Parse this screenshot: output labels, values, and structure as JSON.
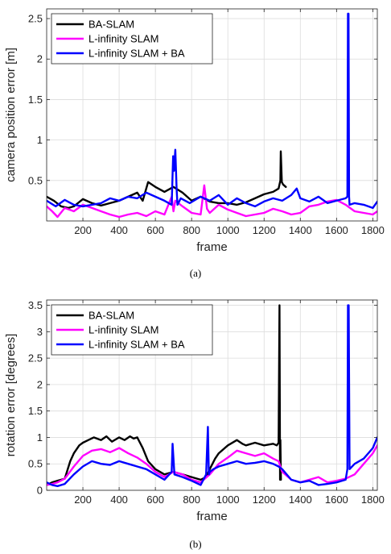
{
  "chart_data": [
    {
      "type": "line",
      "xlabel": "frame",
      "ylabel": "camera position error [m]",
      "xlim": [
        0,
        1825
      ],
      "ylim": [
        0,
        2.62
      ],
      "xticks": [
        200,
        400,
        600,
        800,
        1000,
        1200,
        1400,
        1600,
        1800
      ],
      "xtick_labels": [
        "200",
        "400",
        "600",
        "800",
        "1000",
        "1200",
        "1400",
        "1600",
        "1800"
      ],
      "yticks": [
        0.5,
        1,
        1.5,
        2,
        2.5
      ],
      "ytick_labels": [
        "0.5",
        "1",
        "1.5",
        "2",
        "2.5"
      ],
      "grid": true,
      "legend_position": "top-left",
      "caption": "(a)",
      "series": [
        {
          "name": "BA-SLAM",
          "color": "#000000",
          "x": [
            0,
            40,
            80,
            120,
            150,
            200,
            250,
            300,
            350,
            400,
            450,
            500,
            530,
            560,
            600,
            650,
            700,
            750,
            800,
            850,
            900,
            950,
            1000,
            1050,
            1100,
            1150,
            1200,
            1250,
            1280,
            1290,
            1292,
            1298,
            1305,
            1320
          ],
          "y": [
            0.3,
            0.25,
            0.18,
            0.16,
            0.18,
            0.27,
            0.22,
            0.19,
            0.22,
            0.25,
            0.3,
            0.35,
            0.25,
            0.48,
            0.42,
            0.36,
            0.42,
            0.35,
            0.25,
            0.3,
            0.24,
            0.22,
            0.22,
            0.2,
            0.23,
            0.28,
            0.33,
            0.36,
            0.4,
            0.5,
            0.86,
            0.48,
            0.45,
            0.42
          ]
        },
        {
          "name": "L-infinity SLAM",
          "color": "#ff00ff",
          "x": [
            0,
            30,
            60,
            100,
            150,
            200,
            250,
            300,
            350,
            400,
            450,
            500,
            550,
            600,
            650,
            690,
            700,
            710,
            750,
            800,
            850,
            870,
            885,
            900,
            950,
            1000,
            1050,
            1100,
            1150,
            1200,
            1250,
            1300,
            1350,
            1400,
            1450,
            1500,
            1550,
            1600,
            1650,
            1700,
            1750,
            1800,
            1825
          ],
          "y": [
            0.18,
            0.12,
            0.05,
            0.16,
            0.12,
            0.2,
            0.16,
            0.12,
            0.08,
            0.05,
            0.08,
            0.1,
            0.06,
            0.12,
            0.08,
            0.3,
            0.12,
            0.25,
            0.18,
            0.1,
            0.08,
            0.44,
            0.15,
            0.1,
            0.2,
            0.14,
            0.1,
            0.06,
            0.08,
            0.1,
            0.15,
            0.12,
            0.08,
            0.1,
            0.18,
            0.2,
            0.24,
            0.26,
            0.2,
            0.12,
            0.1,
            0.08,
            0.12
          ]
        },
        {
          "name": "L-infinity SLAM + BA",
          "color": "#0000ff",
          "x": [
            0,
            50,
            100,
            150,
            200,
            250,
            300,
            350,
            400,
            450,
            500,
            550,
            600,
            650,
            690,
            698,
            703,
            710,
            717,
            722,
            740,
            790,
            850,
            900,
            950,
            1000,
            1050,
            1100,
            1150,
            1200,
            1250,
            1300,
            1350,
            1380,
            1400,
            1450,
            1500,
            1550,
            1600,
            1650,
            1660,
            1663,
            1666,
            1669,
            1672,
            1700,
            1750,
            1800,
            1825
          ],
          "y": [
            0.25,
            0.18,
            0.26,
            0.2,
            0.18,
            0.2,
            0.22,
            0.28,
            0.25,
            0.3,
            0.28,
            0.35,
            0.3,
            0.25,
            0.2,
            0.8,
            0.62,
            0.88,
            0.4,
            0.2,
            0.28,
            0.22,
            0.3,
            0.25,
            0.32,
            0.2,
            0.28,
            0.22,
            0.18,
            0.24,
            0.28,
            0.25,
            0.32,
            0.4,
            0.28,
            0.24,
            0.3,
            0.22,
            0.25,
            0.28,
            0.3,
            2.56,
            2.56,
            0.3,
            0.2,
            0.22,
            0.2,
            0.16,
            0.24
          ]
        }
      ]
    },
    {
      "type": "line",
      "xlabel": "frame",
      "ylabel": "rotation error [degrees]",
      "xlim": [
        0,
        1825
      ],
      "ylim": [
        0,
        3.6
      ],
      "xticks": [
        200,
        400,
        600,
        800,
        1000,
        1200,
        1400,
        1600,
        1800
      ],
      "xtick_labels": [
        "200",
        "400",
        "600",
        "800",
        "1000",
        "1200",
        "1400",
        "1600",
        "1800"
      ],
      "yticks": [
        0,
        0.5,
        1,
        1.5,
        2,
        2.5,
        3,
        3.5
      ],
      "ytick_labels": [
        "0",
        "0.5",
        "1",
        "1.5",
        "2",
        "2.5",
        "3",
        "3.5"
      ],
      "grid": true,
      "legend_position": "top-left",
      "caption": "(b)",
      "series": [
        {
          "name": "BA-SLAM",
          "color": "#000000",
          "x": [
            0,
            30,
            60,
            100,
            130,
            150,
            180,
            200,
            230,
            260,
            300,
            330,
            360,
            400,
            430,
            460,
            480,
            500,
            530,
            560,
            600,
            650,
            700,
            750,
            800,
            850,
            880,
            900,
            930,
            950,
            1000,
            1050,
            1080,
            1100,
            1150,
            1200,
            1250,
            1270,
            1280,
            1285,
            1288,
            1290,
            1293
          ],
          "y": [
            0.1,
            0.15,
            0.18,
            0.22,
            0.55,
            0.7,
            0.85,
            0.9,
            0.95,
            1.0,
            0.95,
            1.02,
            0.92,
            1.0,
            0.95,
            1.02,
            0.98,
            1.0,
            0.8,
            0.55,
            0.4,
            0.3,
            0.35,
            0.3,
            0.25,
            0.2,
            0.25,
            0.4,
            0.6,
            0.7,
            0.85,
            0.95,
            0.88,
            0.85,
            0.9,
            0.85,
            0.88,
            0.85,
            0.9,
            3.5,
            0.2,
            0.95,
            0.2
          ]
        },
        {
          "name": "L-infinity SLAM",
          "color": "#ff00ff",
          "x": [
            0,
            30,
            60,
            100,
            150,
            200,
            250,
            300,
            350,
            400,
            450,
            500,
            550,
            600,
            650,
            700,
            750,
            800,
            850,
            900,
            950,
            1000,
            1050,
            1100,
            1150,
            1200,
            1250,
            1280,
            1300,
            1350,
            1400,
            1450,
            1500,
            1550,
            1600,
            1650,
            1700,
            1750,
            1800,
            1825
          ],
          "y": [
            0.1,
            0.12,
            0.15,
            0.22,
            0.45,
            0.65,
            0.75,
            0.78,
            0.72,
            0.8,
            0.7,
            0.62,
            0.5,
            0.35,
            0.25,
            0.35,
            0.3,
            0.2,
            0.15,
            0.3,
            0.5,
            0.62,
            0.75,
            0.7,
            0.65,
            0.7,
            0.6,
            0.55,
            0.35,
            0.2,
            0.15,
            0.2,
            0.25,
            0.15,
            0.18,
            0.22,
            0.3,
            0.5,
            0.7,
            0.85
          ]
        },
        {
          "name": "L-infinity SLAM + BA",
          "color": "#0000ff",
          "x": [
            0,
            30,
            60,
            100,
            150,
            200,
            250,
            300,
            350,
            400,
            450,
            500,
            550,
            600,
            650,
            690,
            695,
            705,
            750,
            800,
            850,
            880,
            890,
            895,
            900,
            920,
            950,
            1000,
            1050,
            1100,
            1150,
            1200,
            1250,
            1280,
            1300,
            1350,
            1400,
            1450,
            1500,
            1550,
            1600,
            1650,
            1660,
            1663,
            1667,
            1672,
            1700,
            1750,
            1800,
            1825
          ],
          "y": [
            0.15,
            0.1,
            0.08,
            0.12,
            0.3,
            0.45,
            0.55,
            0.5,
            0.48,
            0.55,
            0.5,
            0.45,
            0.4,
            0.3,
            0.2,
            0.35,
            0.88,
            0.3,
            0.25,
            0.18,
            0.1,
            0.3,
            1.2,
            0.3,
            0.35,
            0.4,
            0.45,
            0.5,
            0.55,
            0.5,
            0.52,
            0.55,
            0.5,
            0.45,
            0.4,
            0.2,
            0.15,
            0.18,
            0.1,
            0.12,
            0.15,
            0.2,
            0.4,
            3.5,
            3.5,
            0.4,
            0.5,
            0.6,
            0.8,
            1.0
          ]
        }
      ]
    }
  ]
}
